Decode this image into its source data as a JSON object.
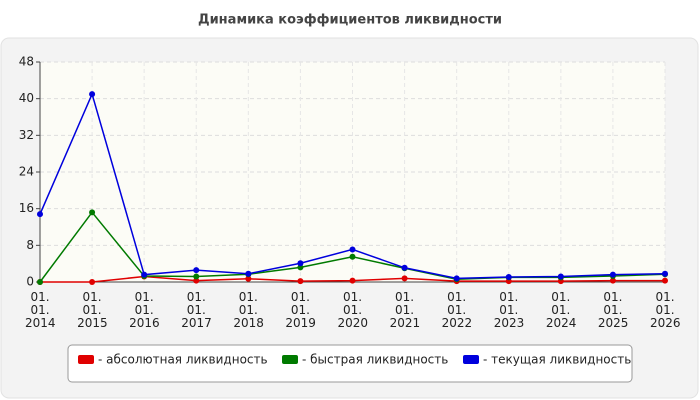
{
  "chart_data": {
    "type": "line",
    "title": "Динамика коэффициентов ликвидности",
    "categories": [
      "01. 01. 2014",
      "01. 01. 2015",
      "01. 01. 2016",
      "01. 01. 2017",
      "01. 01. 2018",
      "01. 01. 2019",
      "01. 01. 2020",
      "01. 01. 2021",
      "01. 01. 2022",
      "01. 01. 2023",
      "01. 01. 2024",
      "01. 01. 2025",
      "01. 01. 2026"
    ],
    "series": [
      {
        "name": "- абсолютная ликвидность",
        "color": "#e00000",
        "values": [
          0,
          0,
          1.2,
          0.3,
          0.7,
          0.2,
          0.3,
          0.8,
          0.2,
          0.2,
          0.2,
          0.3,
          0.3
        ]
      },
      {
        "name": "- быстрая ликвидность",
        "color": "#007a00",
        "values": [
          0,
          15.2,
          1.3,
          1.2,
          1.7,
          3.2,
          5.5,
          3.0,
          0.6,
          1.0,
          1.0,
          1.3,
          1.7
        ]
      },
      {
        "name": "- текущая ликвидность",
        "color": "#0000dd",
        "values": [
          14.8,
          41,
          1.6,
          2.6,
          1.8,
          4.1,
          7.1,
          3.1,
          0.8,
          1.1,
          1.2,
          1.6,
          1.8
        ]
      }
    ],
    "ylim": [
      0,
      48
    ],
    "yticks": [
      0,
      8,
      16,
      24,
      32,
      40,
      48
    ],
    "grid": true
  }
}
